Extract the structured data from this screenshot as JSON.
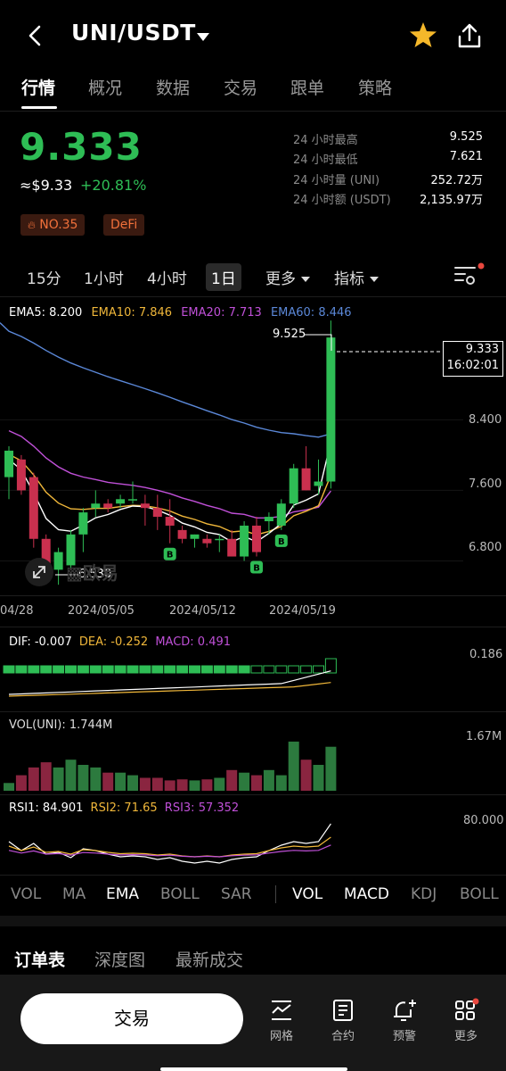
{
  "header": {
    "title": "UNI/USDT"
  },
  "tabs": [
    {
      "label": "行情"
    },
    {
      "label": "概况"
    },
    {
      "label": "数据"
    },
    {
      "label": "交易"
    },
    {
      "label": "跟单"
    },
    {
      "label": "策略"
    }
  ],
  "ticker": {
    "price": "9.333",
    "approx": "≈$9.33",
    "change": "+20.81%",
    "rank_badge": "NO.35",
    "sector_badge": "DeFi"
  },
  "stats": [
    {
      "label": "24 小时最高",
      "value": "9.525"
    },
    {
      "label": "24 小时最低",
      "value": "7.621"
    },
    {
      "label": "24 小时量 (UNI)",
      "value": "252.72万"
    },
    {
      "label": "24 小时额 (USDT)",
      "value": "2,135.97万"
    }
  ],
  "intervals": [
    {
      "label": "15分"
    },
    {
      "label": "1小时"
    },
    {
      "label": "4小时"
    },
    {
      "label": "1日"
    },
    {
      "label": "更多"
    },
    {
      "label": "指标"
    }
  ],
  "ema_legend": {
    "ema5": "EMA5: 8.200",
    "ema10": "EMA10: 7.846",
    "ema20": "EMA20: 7.713",
    "ema60": "EMA60: 8.446"
  },
  "price_axis": [
    "8.400",
    "7.600",
    "6.800"
  ],
  "high_marker": "9.525",
  "low_marker": "6.530",
  "last_price_box": {
    "price": "9.333",
    "time": "16:02:01"
  },
  "watermark": "欧易",
  "buy_marker": "B",
  "date_axis": [
    "04/28",
    "2024/05/05",
    "2024/05/12",
    "2024/05/19"
  ],
  "macd_legend": {
    "dif": "DIF: -0.007",
    "dea": "DEA: -0.252",
    "macd": "MACD: 0.491"
  },
  "macd_axis": "0.186",
  "vol_legend": "VOL(UNI): 1.744M",
  "vol_axis": "1.67M",
  "rsi_legend": {
    "rsi1": "RSI1: 84.901",
    "rsi2": "RSI2: 71.65",
    "rsi3": "RSI3: 57.352"
  },
  "rsi_axis": "80.000",
  "indicator_tabs": [
    {
      "label": "VOL"
    },
    {
      "label": "MA"
    },
    {
      "label": "EMA"
    },
    {
      "label": "BOLL"
    },
    {
      "label": "SAR"
    },
    {
      "label": "VOL"
    },
    {
      "label": "MACD"
    },
    {
      "label": "KDJ"
    },
    {
      "label": "BOLL"
    }
  ],
  "bottom_tabs": [
    {
      "label": "订单表"
    },
    {
      "label": "深度图"
    },
    {
      "label": "最新成交"
    }
  ],
  "trade_button": "交易",
  "nav": [
    {
      "label": "网格"
    },
    {
      "label": "合约"
    },
    {
      "label": "预警"
    },
    {
      "label": "更多"
    }
  ],
  "colors": {
    "up": "#2ebd55",
    "down": "#c9304e",
    "ema5": "#ffffff",
    "ema10": "#f0b73a",
    "ema20": "#c050d8",
    "ema60": "#5b88d8"
  },
  "chart_data": {
    "type": "candlestick",
    "candles": [
      {
        "o": 7.75,
        "h": 8.1,
        "l": 7.5,
        "c": 8.05
      },
      {
        "o": 7.95,
        "h": 8.0,
        "l": 7.55,
        "c": 7.6
      },
      {
        "o": 7.75,
        "h": 7.8,
        "l": 6.95,
        "c": 7.05
      },
      {
        "o": 7.05,
        "h": 7.1,
        "l": 6.6,
        "c": 6.7
      },
      {
        "o": 6.7,
        "h": 6.95,
        "l": 6.53,
        "c": 6.9
      },
      {
        "o": 6.75,
        "h": 7.15,
        "l": 6.7,
        "c": 7.1
      },
      {
        "o": 7.1,
        "h": 7.4,
        "l": 6.9,
        "c": 7.35
      },
      {
        "o": 7.4,
        "h": 7.6,
        "l": 7.3,
        "c": 7.45
      },
      {
        "o": 7.45,
        "h": 7.5,
        "l": 7.35,
        "c": 7.4
      },
      {
        "o": 7.45,
        "h": 7.55,
        "l": 7.4,
        "c": 7.5
      },
      {
        "o": 7.5,
        "h": 7.7,
        "l": 7.45,
        "c": 7.5
      },
      {
        "o": 7.45,
        "h": 7.55,
        "l": 7.2,
        "c": 7.4
      },
      {
        "o": 7.4,
        "h": 7.55,
        "l": 7.15,
        "c": 7.3
      },
      {
        "o": 7.3,
        "h": 7.5,
        "l": 7.0,
        "c": 7.2
      },
      {
        "o": 7.15,
        "h": 7.2,
        "l": 7.0,
        "c": 7.05
      },
      {
        "o": 7.05,
        "h": 7.1,
        "l": 6.95,
        "c": 7.1
      },
      {
        "o": 7.05,
        "h": 7.1,
        "l": 6.95,
        "c": 7.0
      },
      {
        "o": 7.05,
        "h": 7.1,
        "l": 6.9,
        "c": 7.05
      },
      {
        "o": 7.05,
        "h": 7.15,
        "l": 6.85,
        "c": 6.85
      },
      {
        "o": 6.85,
        "h": 7.25,
        "l": 6.8,
        "c": 7.2
      },
      {
        "o": 7.2,
        "h": 7.3,
        "l": 6.85,
        "c": 6.9
      },
      {
        "o": 7.25,
        "h": 7.35,
        "l": 7.1,
        "c": 7.3
      },
      {
        "o": 7.2,
        "h": 7.5,
        "l": 7.15,
        "c": 7.45
      },
      {
        "o": 7.45,
        "h": 7.9,
        "l": 7.4,
        "c": 7.85
      },
      {
        "o": 7.85,
        "h": 8.1,
        "l": 7.6,
        "c": 7.6
      },
      {
        "o": 7.65,
        "h": 7.95,
        "l": 7.55,
        "c": 7.7
      },
      {
        "o": 7.7,
        "h": 9.525,
        "l": 7.621,
        "c": 9.333
      }
    ],
    "ylim": [
      6.4,
      9.8
    ]
  }
}
